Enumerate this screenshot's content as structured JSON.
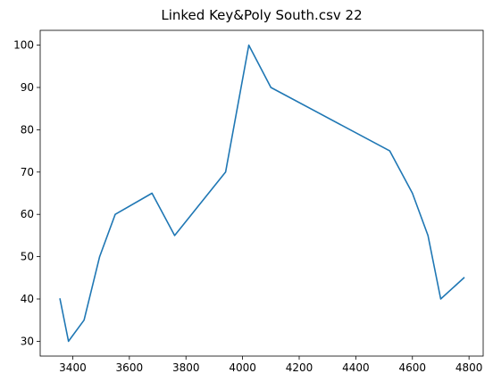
{
  "chart_data": {
    "type": "line",
    "title": "Linked Key&Poly South.csv 22",
    "xlabel": "",
    "ylabel": "",
    "xlim": [
      3285,
      4850
    ],
    "ylim": [
      26.5,
      103.5
    ],
    "xticks": [
      3400,
      3600,
      3800,
      4000,
      4200,
      4400,
      4600,
      4800
    ],
    "yticks": [
      30,
      40,
      50,
      60,
      70,
      80,
      90,
      100
    ],
    "grid": false,
    "legend": "none",
    "series": [
      {
        "color": "#1f77b4",
        "x": [
          3355,
          3385,
          3440,
          3495,
          3550,
          3680,
          3760,
          3940,
          4022,
          4100,
          4520,
          4600,
          4655,
          4700,
          4782
        ],
        "y": [
          40,
          30,
          35,
          50,
          60,
          65,
          55,
          70,
          100,
          90,
          75,
          65,
          55,
          40,
          45
        ]
      }
    ]
  }
}
